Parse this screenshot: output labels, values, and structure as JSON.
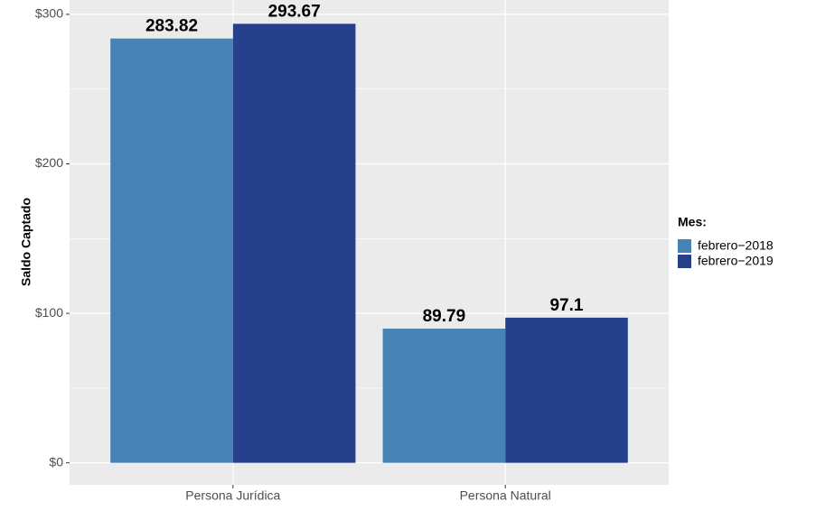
{
  "chart_data": {
    "type": "bar",
    "y_label": "Saldo Captado",
    "categories": [
      "Persona Jurídica",
      "Persona Natural"
    ],
    "legend_title": "Mes:",
    "series": [
      {
        "name": "febrero−2018",
        "color": "#4682b4",
        "values": [
          283.82,
          89.79
        ]
      },
      {
        "name": "febrero−2019",
        "color": "#27408b",
        "values": [
          293.67,
          97.1
        ]
      }
    ],
    "ylim": [
      -14.7,
      309.6
    ],
    "yticks": [
      {
        "value": 0,
        "label": "$0"
      },
      {
        "value": 100,
        "label": "$100"
      },
      {
        "value": 200,
        "label": "$200"
      },
      {
        "value": 300,
        "label": "$300"
      }
    ],
    "y_minor_ticks": [
      50,
      150,
      250
    ],
    "grid": true,
    "legend": "right"
  }
}
